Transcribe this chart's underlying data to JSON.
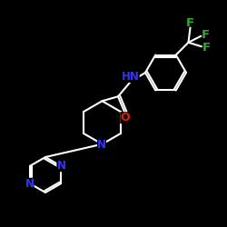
{
  "background": "#000000",
  "bond_color": "#ffffff",
  "N_color": "#3333ff",
  "O_color": "#dd2200",
  "F_color": "#33aa33",
  "line_width": 1.5,
  "font_size_atom": 8.5,
  "figsize": [
    2.5,
    2.5
  ],
  "dpi": 100,
  "xlim": [
    0,
    10
  ],
  "ylim": [
    0,
    10
  ]
}
